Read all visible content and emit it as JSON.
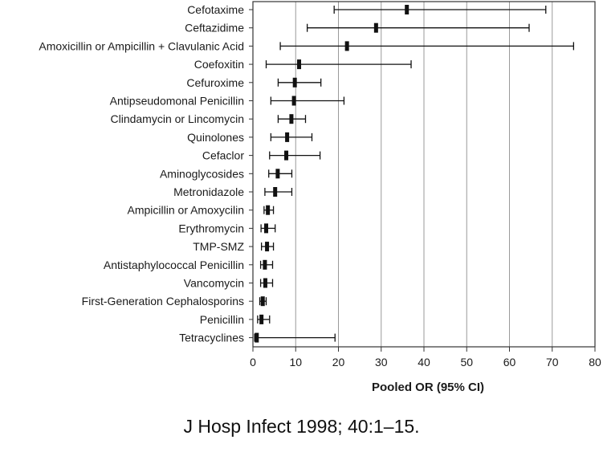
{
  "chart_data": {
    "type": "forest",
    "title": "",
    "xlabel": "Pooled OR (95% CI)",
    "ylabel": "",
    "xlim": [
      0,
      80
    ],
    "xticks": [
      0,
      10,
      20,
      30,
      40,
      50,
      60,
      70,
      80
    ],
    "grid": "vertical",
    "legend": "none",
    "colors": {
      "marks": "#111111",
      "grid": "#9a9a9a",
      "frame": "#333333"
    },
    "rows": [
      {
        "label": "Cefotaxime",
        "or": 36.0,
        "lo": 19.0,
        "hi": 68.5
      },
      {
        "label": "Ceftazidime",
        "or": 28.8,
        "lo": 12.7,
        "hi": 64.6
      },
      {
        "label": "Amoxicillin or Ampicillin + Clavulanic Acid",
        "or": 22.0,
        "lo": 6.4,
        "hi": 75.0
      },
      {
        "label": "Coefoxitin",
        "or": 10.8,
        "lo": 3.1,
        "hi": 37.0
      },
      {
        "label": "Cefuroxime",
        "or": 9.8,
        "lo": 5.9,
        "hi": 15.9
      },
      {
        "label": "Antipseudomonal Penicillin",
        "or": 9.6,
        "lo": 4.2,
        "hi": 21.3
      },
      {
        "label": "Clindamycin or Lincomycin",
        "or": 9.0,
        "lo": 5.9,
        "hi": 12.3
      },
      {
        "label": "Quinolones",
        "or": 8.0,
        "lo": 4.2,
        "hi": 13.8
      },
      {
        "label": "Cefaclor",
        "or": 7.8,
        "lo": 3.9,
        "hi": 15.7
      },
      {
        "label": "Aminoglycosides",
        "or": 5.8,
        "lo": 3.7,
        "hi": 9.1
      },
      {
        "label": "Metronidazole",
        "or": 5.2,
        "lo": 2.8,
        "hi": 9.1
      },
      {
        "label": "Ampicillin or Amoxycilin",
        "or": 3.5,
        "lo": 2.6,
        "hi": 4.8
      },
      {
        "label": "Erythromycin",
        "or": 3.1,
        "lo": 1.9,
        "hi": 5.2
      },
      {
        "label": "TMP-SMZ",
        "or": 3.3,
        "lo": 2.0,
        "hi": 4.8
      },
      {
        "label": "Antistaphylococcal Penicillin",
        "or": 2.8,
        "lo": 1.8,
        "hi": 4.6
      },
      {
        "label": "Vancomycin",
        "or": 2.9,
        "lo": 1.8,
        "hi": 4.6
      },
      {
        "label": "First-Generation Cephalosporins",
        "or": 2.3,
        "lo": 1.6,
        "hi": 3.1
      },
      {
        "label": "Penicillin",
        "or": 2.0,
        "lo": 1.1,
        "hi": 3.9
      },
      {
        "label": "Tetracyclines",
        "or": 0.9,
        "lo": 0.4,
        "hi": 19.2
      }
    ]
  },
  "citation": "J Hosp Infect 1998; 40:1–15."
}
